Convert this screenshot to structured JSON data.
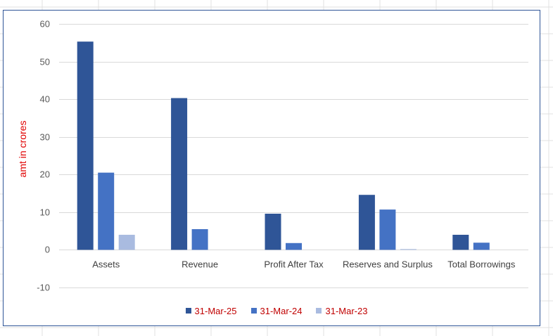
{
  "chart_data": {
    "type": "bar",
    "categories": [
      "Assets",
      "Revenue",
      "Profit After Tax",
      "Reserves and Surplus",
      "Total Borrowings"
    ],
    "series": [
      {
        "name": "31-Mar-25",
        "color": "#2f5597",
        "values": [
          55.3,
          40.3,
          9.6,
          14.6,
          4.0
        ]
      },
      {
        "name": "31-Mar-24",
        "color": "#4472c4",
        "values": [
          20.5,
          5.5,
          1.8,
          10.7,
          1.9
        ]
      },
      {
        "name": "31-Mar-23",
        "color": "#a9bbe0",
        "values": [
          4.0,
          0,
          0,
          0.2,
          0
        ]
      }
    ],
    "ylabel": "amt in crores",
    "ylim": [
      -10,
      60
    ],
    "yticks": [
      "60",
      "50",
      "40",
      "30",
      "20",
      "10",
      "0",
      "-10"
    ],
    "grid": true,
    "legend": "bottom"
  }
}
